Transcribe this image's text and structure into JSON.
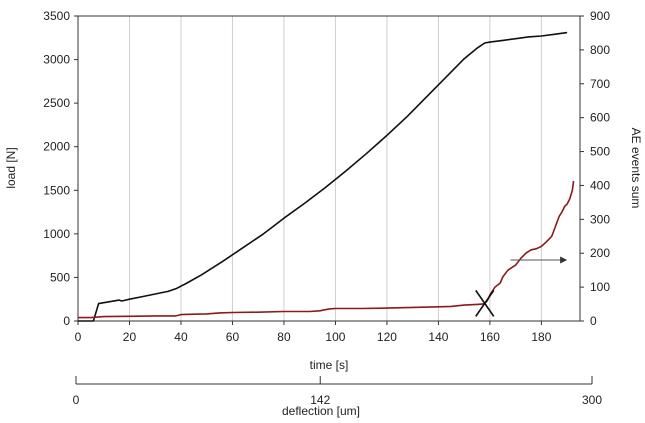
{
  "chart_data": {
    "type": "line",
    "xlabel": "time [s]",
    "ylabel_left": "load [N]",
    "ylabel_right": "AE events sum",
    "xlim": [
      0,
      195
    ],
    "ylim_left": [
      0,
      3500
    ],
    "ylim_right": [
      0,
      900
    ],
    "x_ticks": [
      0,
      20,
      40,
      60,
      80,
      100,
      120,
      140,
      160,
      180
    ],
    "y_ticks_left": [
      0,
      500,
      1000,
      1500,
      2000,
      2500,
      3000,
      3500
    ],
    "y_ticks_right": [
      0,
      100,
      200,
      300,
      400,
      500,
      600,
      700,
      800,
      900
    ],
    "grid": "vertical",
    "series": [
      {
        "axis": "left",
        "color": "#111111",
        "points": [
          [
            0,
            0
          ],
          [
            6,
            0
          ],
          [
            8,
            200
          ],
          [
            12,
            220
          ],
          [
            16,
            240
          ],
          [
            17,
            230
          ],
          [
            20,
            250
          ],
          [
            25,
            280
          ],
          [
            30,
            310
          ],
          [
            35,
            340
          ],
          [
            38,
            370
          ],
          [
            42,
            430
          ],
          [
            48,
            530
          ],
          [
            56,
            680
          ],
          [
            64,
            840
          ],
          [
            72,
            1000
          ],
          [
            80,
            1180
          ],
          [
            88,
            1350
          ],
          [
            96,
            1530
          ],
          [
            104,
            1720
          ],
          [
            112,
            1920
          ],
          [
            120,
            2130
          ],
          [
            128,
            2350
          ],
          [
            136,
            2590
          ],
          [
            144,
            2830
          ],
          [
            150,
            3010
          ],
          [
            155,
            3130
          ],
          [
            158,
            3190
          ],
          [
            160,
            3200
          ],
          [
            165,
            3220
          ],
          [
            170,
            3240
          ],
          [
            175,
            3260
          ],
          [
            180,
            3270
          ],
          [
            185,
            3290
          ],
          [
            190,
            3310
          ]
        ]
      },
      {
        "axis": "right",
        "color": "#8b1a1a",
        "points": [
          [
            0,
            10
          ],
          [
            5,
            10
          ],
          [
            10,
            13
          ],
          [
            20,
            14
          ],
          [
            30,
            15
          ],
          [
            38,
            15
          ],
          [
            40,
            19
          ],
          [
            45,
            20
          ],
          [
            50,
            21
          ],
          [
            55,
            24
          ],
          [
            60,
            25
          ],
          [
            70,
            26
          ],
          [
            80,
            28
          ],
          [
            90,
            28
          ],
          [
            94,
            30
          ],
          [
            95,
            32
          ],
          [
            98,
            36
          ],
          [
            100,
            37
          ],
          [
            110,
            37
          ],
          [
            120,
            38
          ],
          [
            130,
            40
          ],
          [
            140,
            42
          ],
          [
            145,
            43
          ],
          [
            150,
            47
          ],
          [
            155,
            49
          ],
          [
            157,
            50
          ],
          [
            158,
            52
          ],
          [
            159,
            60
          ],
          [
            160,
            77
          ],
          [
            162,
            100
          ],
          [
            164,
            112
          ],
          [
            165,
            130
          ],
          [
            167,
            150
          ],
          [
            170,
            165
          ],
          [
            172,
            185
          ],
          [
            174,
            200
          ],
          [
            176,
            210
          ],
          [
            178,
            213
          ],
          [
            180,
            220
          ],
          [
            182,
            234
          ],
          [
            184,
            250
          ],
          [
            185,
            270
          ],
          [
            186,
            290
          ],
          [
            187,
            310
          ],
          [
            188,
            322
          ],
          [
            189,
            338
          ],
          [
            190,
            345
          ],
          [
            191,
            360
          ],
          [
            192,
            385
          ],
          [
            192.5,
            413
          ]
        ]
      }
    ],
    "annotations": {
      "failure_marker": {
        "x": 158,
        "y_right": 52
      },
      "arrow": {
        "from": [
          168,
          180
        ],
        "to": [
          190,
          180
        ],
        "axis": "right",
        "direction": "right"
      }
    },
    "secondary_x_axis": {
      "label": "deflection [um]",
      "ticks": [
        {
          "value": 0,
          "label": "0"
        },
        {
          "value": 142,
          "label": "142"
        },
        {
          "value": 300,
          "label": "300"
        }
      ]
    }
  }
}
